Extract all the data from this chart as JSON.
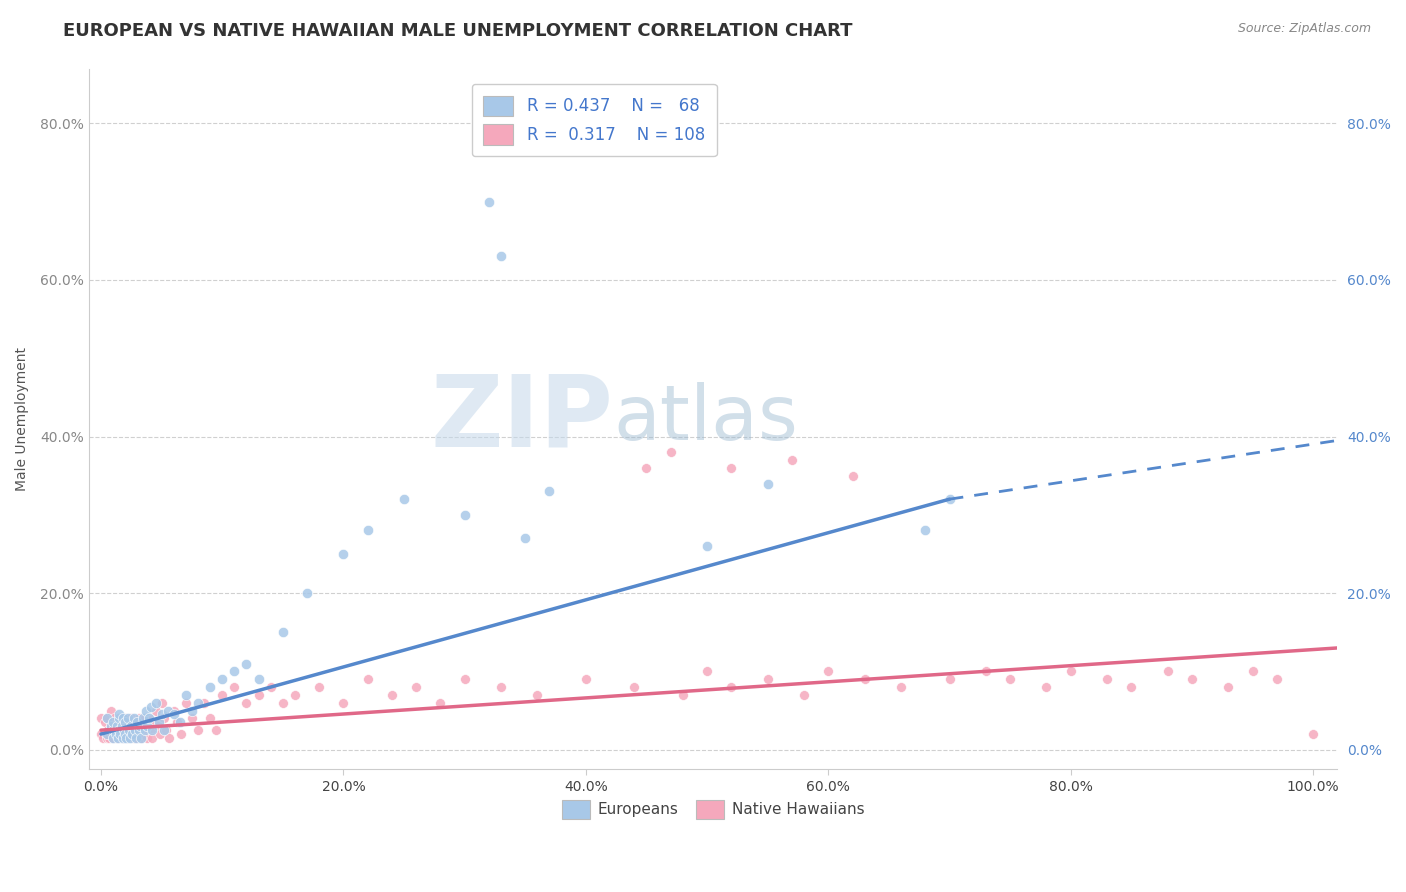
{
  "title": "EUROPEAN VS NATIVE HAWAIIAN MALE UNEMPLOYMENT CORRELATION CHART",
  "source": "Source: ZipAtlas.com",
  "ylabel": "Male Unemployment",
  "xlabel": "",
  "xlim": [
    -0.01,
    1.02
  ],
  "ylim": [
    -0.025,
    0.87
  ],
  "xticks": [
    0.0,
    0.2,
    0.4,
    0.6,
    0.8,
    1.0
  ],
  "xtick_labels": [
    "0.0%",
    "20.0%",
    "40.0%",
    "60.0%",
    "80.0%",
    "100.0%"
  ],
  "yticks": [
    0.0,
    0.2,
    0.4,
    0.6,
    0.8
  ],
  "ytick_labels": [
    "0.0%",
    "20.0%",
    "40.0%",
    "60.0%",
    "80.0%"
  ],
  "R_european": 0.437,
  "N_european": 68,
  "R_hawaiian": 0.317,
  "N_hawaiian": 108,
  "european_color": "#a8c8e8",
  "hawaiian_color": "#f5a8bc",
  "european_line_color": "#5588cc",
  "hawaiian_line_color": "#e06888",
  "watermark_zip": "ZIP",
  "watermark_atlas": "atlas",
  "watermark_color_zip": "#b8cce0",
  "watermark_color_atlas": "#9ab8d0",
  "background_color": "#ffffff",
  "title_fontsize": 13,
  "label_fontsize": 10,
  "tick_fontsize": 10,
  "legend_fontsize": 12,
  "euro_line_start_x": 0.0,
  "euro_line_start_y": 0.02,
  "euro_line_end_x": 0.7,
  "euro_line_end_y": 0.32,
  "euro_line_dash_end_x": 1.02,
  "euro_line_dash_end_y": 0.395,
  "haw_line_start_x": 0.0,
  "haw_line_start_y": 0.025,
  "haw_line_end_x": 1.02,
  "haw_line_end_y": 0.13,
  "european_scatter_x": [
    0.005,
    0.005,
    0.008,
    0.01,
    0.01,
    0.01,
    0.012,
    0.013,
    0.014,
    0.015,
    0.015,
    0.015,
    0.016,
    0.017,
    0.018,
    0.018,
    0.019,
    0.02,
    0.02,
    0.021,
    0.022,
    0.023,
    0.024,
    0.025,
    0.026,
    0.027,
    0.028,
    0.029,
    0.03,
    0.031,
    0.032,
    0.033,
    0.035,
    0.036,
    0.037,
    0.038,
    0.04,
    0.041,
    0.042,
    0.045,
    0.048,
    0.05,
    0.052,
    0.055,
    0.06,
    0.065,
    0.07,
    0.075,
    0.08,
    0.09,
    0.1,
    0.11,
    0.12,
    0.13,
    0.15,
    0.17,
    0.2,
    0.22,
    0.25,
    0.3,
    0.32,
    0.33,
    0.35,
    0.37,
    0.5,
    0.55,
    0.68,
    0.7
  ],
  "european_scatter_y": [
    0.02,
    0.04,
    0.03,
    0.015,
    0.025,
    0.035,
    0.02,
    0.03,
    0.015,
    0.04,
    0.025,
    0.045,
    0.02,
    0.03,
    0.015,
    0.04,
    0.025,
    0.02,
    0.035,
    0.015,
    0.04,
    0.025,
    0.015,
    0.03,
    0.02,
    0.04,
    0.025,
    0.015,
    0.035,
    0.025,
    0.03,
    0.015,
    0.04,
    0.025,
    0.05,
    0.03,
    0.04,
    0.055,
    0.025,
    0.06,
    0.035,
    0.045,
    0.025,
    0.05,
    0.045,
    0.035,
    0.07,
    0.05,
    0.06,
    0.08,
    0.09,
    0.1,
    0.11,
    0.09,
    0.15,
    0.2,
    0.25,
    0.28,
    0.32,
    0.3,
    0.7,
    0.63,
    0.27,
    0.33,
    0.26,
    0.34,
    0.28,
    0.32
  ],
  "hawaiian_scatter_x": [
    0.0,
    0.0,
    0.002,
    0.003,
    0.004,
    0.005,
    0.005,
    0.006,
    0.007,
    0.008,
    0.008,
    0.009,
    0.01,
    0.01,
    0.011,
    0.012,
    0.013,
    0.014,
    0.015,
    0.015,
    0.016,
    0.017,
    0.018,
    0.019,
    0.02,
    0.02,
    0.021,
    0.022,
    0.023,
    0.024,
    0.025,
    0.026,
    0.027,
    0.028,
    0.029,
    0.03,
    0.031,
    0.032,
    0.033,
    0.034,
    0.035,
    0.036,
    0.037,
    0.038,
    0.04,
    0.041,
    0.042,
    0.044,
    0.045,
    0.047,
    0.049,
    0.05,
    0.052,
    0.054,
    0.056,
    0.06,
    0.063,
    0.066,
    0.07,
    0.075,
    0.08,
    0.085,
    0.09,
    0.095,
    0.1,
    0.11,
    0.12,
    0.13,
    0.14,
    0.15,
    0.16,
    0.18,
    0.2,
    0.22,
    0.24,
    0.26,
    0.28,
    0.3,
    0.33,
    0.36,
    0.4,
    0.44,
    0.48,
    0.5,
    0.52,
    0.55,
    0.58,
    0.6,
    0.63,
    0.66,
    0.7,
    0.73,
    0.75,
    0.78,
    0.8,
    0.83,
    0.85,
    0.88,
    0.9,
    0.93,
    0.95,
    0.97,
    1.0,
    0.45,
    0.47,
    0.52,
    0.57,
    0.62
  ],
  "hawaiian_scatter_y": [
    0.02,
    0.04,
    0.015,
    0.035,
    0.02,
    0.015,
    0.04,
    0.025,
    0.015,
    0.03,
    0.05,
    0.02,
    0.035,
    0.015,
    0.04,
    0.025,
    0.015,
    0.035,
    0.02,
    0.04,
    0.025,
    0.015,
    0.035,
    0.02,
    0.015,
    0.04,
    0.025,
    0.015,
    0.035,
    0.02,
    0.04,
    0.025,
    0.015,
    0.035,
    0.02,
    0.015,
    0.04,
    0.025,
    0.015,
    0.03,
    0.02,
    0.04,
    0.025,
    0.015,
    0.04,
    0.025,
    0.015,
    0.035,
    0.05,
    0.03,
    0.02,
    0.06,
    0.04,
    0.025,
    0.015,
    0.05,
    0.035,
    0.02,
    0.06,
    0.04,
    0.025,
    0.06,
    0.04,
    0.025,
    0.07,
    0.08,
    0.06,
    0.07,
    0.08,
    0.06,
    0.07,
    0.08,
    0.06,
    0.09,
    0.07,
    0.08,
    0.06,
    0.09,
    0.08,
    0.07,
    0.09,
    0.08,
    0.07,
    0.1,
    0.08,
    0.09,
    0.07,
    0.1,
    0.09,
    0.08,
    0.09,
    0.1,
    0.09,
    0.08,
    0.1,
    0.09,
    0.08,
    0.1,
    0.09,
    0.08,
    0.1,
    0.09,
    0.02,
    0.36,
    0.38,
    0.36,
    0.37,
    0.35
  ]
}
